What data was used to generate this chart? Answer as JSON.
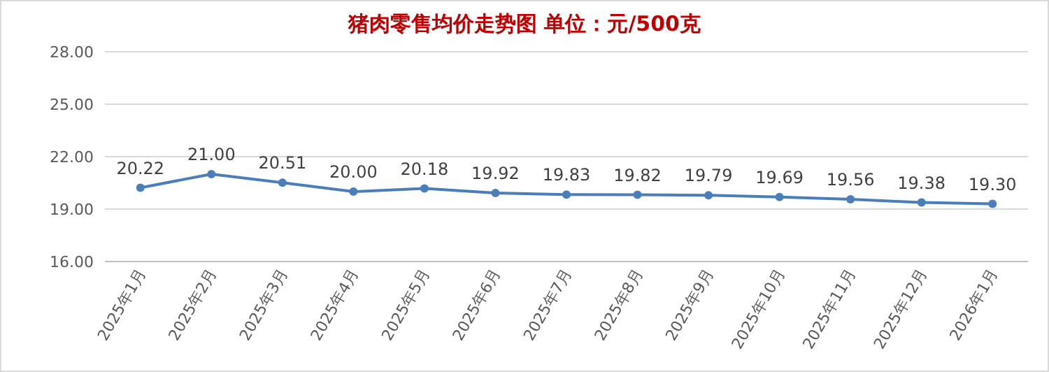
{
  "chart_data": {
    "type": "line",
    "title": "猪肉零售均价走势图   单位：元/500克",
    "categories": [
      "2025年1月",
      "2025年2月",
      "2025年3月",
      "2025年4月",
      "2025年5月",
      "2025年6月",
      "2025年7月",
      "2025年8月",
      "2025年9月",
      "2025年10月",
      "2025年11月",
      "2025年12月",
      "2026年1月"
    ],
    "values": [
      20.22,
      21.0,
      20.51,
      20.0,
      20.18,
      19.92,
      19.83,
      19.82,
      19.79,
      19.69,
      19.56,
      19.38,
      19.3
    ],
    "value_labels": [
      "20.22",
      "21.00",
      "20.51",
      "20.00",
      "20.18",
      "19.92",
      "19.83",
      "19.82",
      "19.79",
      "19.69",
      "19.56",
      "19.38",
      "19.30"
    ],
    "color": "#4a7ebb",
    "marker": "circle",
    "grid": "y",
    "ylim": [
      16,
      28
    ],
    "yticks": [
      {
        "value": 16,
        "label": "16.00"
      },
      {
        "value": 19,
        "label": "19.00"
      },
      {
        "value": 22,
        "label": "22.00"
      },
      {
        "value": 25,
        "label": "25.00"
      },
      {
        "value": 28,
        "label": "28.00"
      }
    ]
  }
}
